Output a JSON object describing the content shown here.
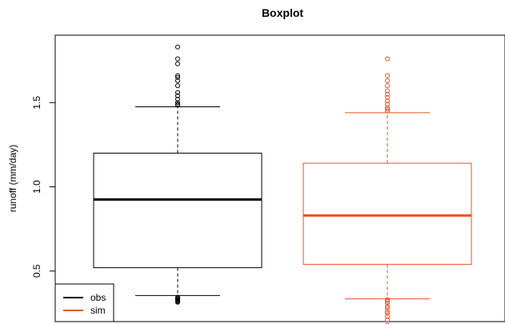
{
  "chart_data": {
    "type": "boxplot",
    "title": "Boxplot",
    "xlabel": "",
    "ylabel": "runoff (mm/day)",
    "ylim": [
      0.2,
      1.9
    ],
    "yticks": [
      0.5,
      1.0,
      1.5
    ],
    "ytick_labels": [
      "0.5",
      "1.0",
      "1.5"
    ],
    "grid": false,
    "legend": {
      "position": "bottom-left",
      "entries": [
        {
          "label": "obs",
          "color": "#000000"
        },
        {
          "label": "sim",
          "color": "#e8531f"
        }
      ]
    },
    "series": [
      {
        "name": "obs",
        "color": "#000000",
        "whisker_low": 0.355,
        "q1": 0.52,
        "median": 0.925,
        "q3": 1.2,
        "whisker_high": 1.475,
        "outliers": [
          0.315,
          0.32,
          0.325,
          0.33,
          0.335,
          0.34,
          0.345,
          1.485,
          1.49,
          1.5,
          1.52,
          1.54,
          1.56,
          1.6,
          1.63,
          1.65,
          1.66,
          1.73,
          1.76,
          1.83
        ]
      },
      {
        "name": "sim",
        "color": "#e8531f",
        "whisker_low": 0.335,
        "q1": 0.54,
        "median": 0.83,
        "q3": 1.14,
        "whisker_high": 1.44,
        "outliers": [
          0.18,
          0.21,
          0.23,
          0.25,
          0.26,
          0.28,
          0.29,
          0.31,
          0.32,
          0.33,
          1.45,
          1.46,
          1.47,
          1.49,
          1.51,
          1.53,
          1.55,
          1.57,
          1.6,
          1.63,
          1.66,
          1.76
        ]
      }
    ]
  }
}
